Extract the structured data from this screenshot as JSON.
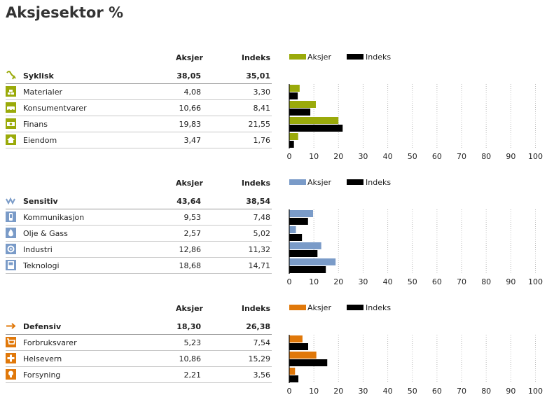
{
  "title": "Aksjesektor %",
  "columns": {
    "portfolio": "Aksjer",
    "index": "Indeks"
  },
  "axis_ticks": [
    "0",
    "10",
    "20",
    "30",
    "40",
    "50",
    "60",
    "70",
    "80",
    "90",
    "100"
  ],
  "sections": [
    {
      "color": "#9aaa0a",
      "total": {
        "label": "Syklisk",
        "icon": "cyclical-icon",
        "aksjer": "38,05",
        "indeks": "35,01"
      },
      "rows": [
        {
          "label": "Materialer",
          "icon": "materials-icon",
          "aksjer": "4,08",
          "indeks": "3,30"
        },
        {
          "label": "Konsumentvarer",
          "icon": "consumer-cyclical-icon",
          "aksjer": "10,66",
          "indeks": "8,41"
        },
        {
          "label": "Finans",
          "icon": "finance-icon",
          "aksjer": "19,83",
          "indeks": "21,55"
        },
        {
          "label": "Eiendom",
          "icon": "real-estate-icon",
          "aksjer": "3,47",
          "indeks": "1,76"
        }
      ]
    },
    {
      "color": "#7a9bc8",
      "total": {
        "label": "Sensitiv",
        "icon": "sensitive-icon",
        "aksjer": "43,64",
        "indeks": "38,54"
      },
      "rows": [
        {
          "label": "Kommunikasjon",
          "icon": "communication-icon",
          "aksjer": "9,53",
          "indeks": "7,48"
        },
        {
          "label": "Olje & Gass",
          "icon": "oil-gas-icon",
          "aksjer": "2,57",
          "indeks": "5,02"
        },
        {
          "label": "Industri",
          "icon": "industrials-icon",
          "aksjer": "12,86",
          "indeks": "11,32"
        },
        {
          "label": "Teknologi",
          "icon": "technology-icon",
          "aksjer": "18,68",
          "indeks": "14,71"
        }
      ]
    },
    {
      "color": "#e0780a",
      "total": {
        "label": "Defensiv",
        "icon": "defensive-icon",
        "aksjer": "18,30",
        "indeks": "26,38"
      },
      "rows": [
        {
          "label": "Forbruksvarer",
          "icon": "consumer-defensive-icon",
          "aksjer": "5,23",
          "indeks": "7,54"
        },
        {
          "label": "Helsevern",
          "icon": "healthcare-icon",
          "aksjer": "10,86",
          "indeks": "15,29"
        },
        {
          "label": "Forsyning",
          "icon": "utilities-icon",
          "aksjer": "2,21",
          "indeks": "3,56"
        }
      ]
    }
  ],
  "chart_data": [
    {
      "type": "bar",
      "orientation": "horizontal",
      "xlim": [
        0,
        100
      ],
      "grid": true,
      "legend": "top",
      "categories": [
        "Materialer",
        "Konsumentvarer",
        "Finans",
        "Eiendom"
      ],
      "series": [
        {
          "name": "Aksjer",
          "color": "#9aaa0a",
          "values": [
            4.08,
            10.66,
            19.83,
            3.47
          ]
        },
        {
          "name": "Indeks",
          "color": "#000000",
          "values": [
            3.3,
            8.41,
            21.55,
            1.76
          ]
        }
      ]
    },
    {
      "type": "bar",
      "orientation": "horizontal",
      "xlim": [
        0,
        100
      ],
      "grid": true,
      "legend": "top",
      "categories": [
        "Kommunikasjon",
        "Olje & Gass",
        "Industri",
        "Teknologi"
      ],
      "series": [
        {
          "name": "Aksjer",
          "color": "#7a9bc8",
          "values": [
            9.53,
            2.57,
            12.86,
            18.68
          ]
        },
        {
          "name": "Indeks",
          "color": "#000000",
          "values": [
            7.48,
            5.02,
            11.32,
            14.71
          ]
        }
      ]
    },
    {
      "type": "bar",
      "orientation": "horizontal",
      "xlim": [
        0,
        100
      ],
      "grid": true,
      "legend": "top",
      "categories": [
        "Forbruksvarer",
        "Helsevern",
        "Forsyning"
      ],
      "series": [
        {
          "name": "Aksjer",
          "color": "#e0780a",
          "values": [
            5.23,
            10.86,
            2.21
          ]
        },
        {
          "name": "Indeks",
          "color": "#000000",
          "values": [
            7.54,
            15.29,
            3.56
          ]
        }
      ]
    }
  ]
}
